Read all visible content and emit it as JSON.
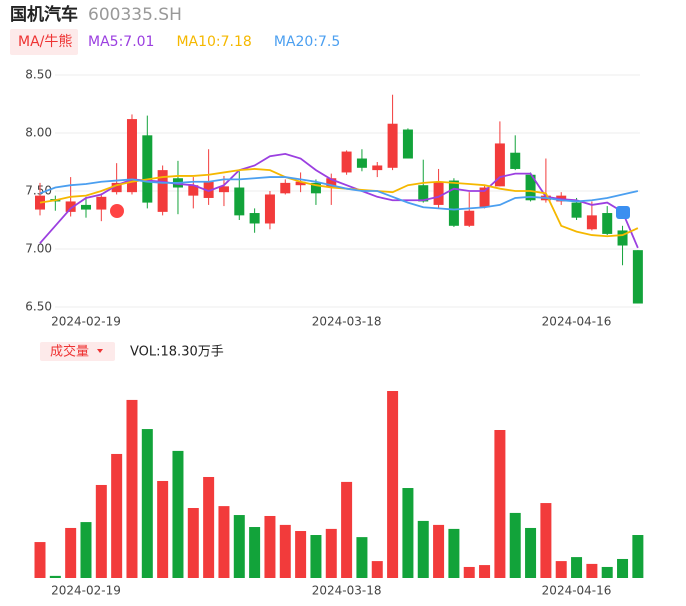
{
  "header": {
    "name": "国机汽车",
    "code": "600335.SH"
  },
  "chart_data": [
    {
      "type": "candlestick",
      "button": "MA/牛熊",
      "categories": [
        null,
        null,
        null,
        "2024-02-19",
        null,
        null,
        null,
        null,
        null,
        null,
        null,
        null,
        null,
        null,
        null,
        null,
        null,
        null,
        null,
        null,
        "2024-03-18",
        null,
        null,
        null,
        null,
        null,
        null,
        null,
        null,
        null,
        null,
        null,
        null,
        null,
        null,
        "2024-04-16",
        null,
        null,
        null,
        null
      ],
      "open": [
        7.34,
        7.43,
        7.32,
        7.38,
        7.34,
        7.49,
        7.49,
        7.98,
        7.32,
        7.61,
        7.46,
        7.44,
        7.49,
        7.53,
        7.31,
        7.22,
        7.48,
        7.55,
        7.57,
        7.53,
        7.66,
        7.78,
        7.68,
        7.7,
        8.03,
        7.55,
        7.38,
        7.59,
        7.2,
        7.36,
        7.54,
        7.83,
        7.64,
        7.42,
        7.41,
        7.4,
        7.17,
        7.31,
        7.16,
        6.99
      ],
      "high": [
        7.57,
        7.46,
        7.62,
        7.45,
        7.48,
        7.74,
        8.16,
        8.15,
        7.72,
        7.76,
        7.62,
        7.86,
        7.63,
        7.67,
        7.35,
        7.5,
        7.6,
        7.66,
        7.6,
        7.65,
        7.85,
        7.86,
        7.75,
        8.33,
        8.04,
        7.77,
        7.69,
        7.61,
        7.49,
        7.55,
        8.1,
        7.98,
        7.66,
        7.78,
        7.49,
        7.44,
        7.41,
        7.37,
        7.2,
        6.99
      ],
      "low": [
        7.29,
        7.33,
        7.28,
        7.27,
        7.24,
        7.47,
        7.47,
        7.35,
        7.29,
        7.3,
        7.35,
        7.38,
        7.37,
        7.25,
        7.14,
        7.17,
        7.47,
        7.49,
        7.38,
        7.38,
        7.64,
        7.67,
        7.62,
        7.68,
        7.78,
        7.4,
        7.35,
        7.19,
        7.19,
        7.35,
        7.54,
        7.68,
        7.41,
        7.4,
        7.38,
        7.25,
        7.16,
        7.12,
        6.86,
        6.53
      ],
      "close": [
        7.46,
        7.41,
        7.41,
        7.34,
        7.45,
        7.57,
        8.12,
        7.4,
        7.68,
        7.53,
        7.55,
        7.58,
        7.54,
        7.29,
        7.22,
        7.47,
        7.57,
        7.58,
        7.48,
        7.61,
        7.84,
        7.7,
        7.72,
        8.08,
        7.78,
        7.41,
        7.58,
        7.2,
        7.33,
        7.53,
        7.91,
        7.69,
        7.42,
        7.46,
        7.46,
        7.27,
        7.29,
        7.13,
        7.03,
        6.53
      ],
      "up_color": "#f23b3b",
      "down_color": "#12a33a",
      "series": [
        {
          "name": "MA5:7.01",
          "color": "#9b3fe0",
          "values": [
            7.05,
            7.2,
            7.35,
            7.44,
            7.47,
            7.55,
            7.6,
            7.59,
            7.58,
            7.56,
            7.55,
            7.5,
            7.55,
            7.68,
            7.72,
            7.8,
            7.82,
            7.78,
            7.68,
            7.6,
            7.55,
            7.5,
            7.45,
            7.42,
            7.42,
            7.42,
            7.45,
            7.52,
            7.5,
            7.5,
            7.62,
            7.65,
            7.65,
            7.45,
            7.43,
            7.42,
            7.38,
            7.4,
            7.32,
            7.01
          ]
        },
        {
          "name": "MA10:7.18",
          "color": "#f5b800",
          "values": [
            7.4,
            7.42,
            7.45,
            7.46,
            7.5,
            7.55,
            7.58,
            7.6,
            7.62,
            7.63,
            7.63,
            7.64,
            7.66,
            7.68,
            7.69,
            7.68,
            7.62,
            7.58,
            7.55,
            7.53,
            7.52,
            7.51,
            7.5,
            7.49,
            7.55,
            7.57,
            7.58,
            7.57,
            7.56,
            7.55,
            7.52,
            7.5,
            7.5,
            7.48,
            7.2,
            7.15,
            7.12,
            7.11,
            7.12,
            7.18
          ]
        },
        {
          "name": "MA20:7.5",
          "color": "#4b9ff0",
          "values": [
            7.48,
            7.53,
            7.55,
            7.56,
            7.58,
            7.59,
            7.6,
            7.58,
            7.57,
            7.57,
            7.58,
            7.58,
            7.6,
            7.6,
            7.61,
            7.62,
            7.62,
            7.6,
            7.58,
            7.55,
            7.52,
            7.5,
            7.5,
            7.45,
            7.4,
            7.36,
            7.35,
            7.34,
            7.35,
            7.36,
            7.38,
            7.44,
            7.45,
            7.44,
            7.42,
            7.41,
            7.42,
            7.44,
            7.47,
            7.5
          ]
        }
      ],
      "ylim": [
        6.5,
        8.5
      ],
      "yticks": [
        {
          "value": 6.5,
          "label": "6.50"
        },
        {
          "value": 7,
          "label": "7.00"
        },
        {
          "value": 7.5,
          "label": "7.50"
        },
        {
          "value": 8,
          "label": "8.00"
        },
        {
          "value": 8.5,
          "label": "8.50"
        }
      ],
      "grid": true
    },
    {
      "type": "bar",
      "button": "成交量",
      "label": "VOL:18.30万手",
      "categories": [
        null,
        null,
        null,
        "2024-02-19",
        null,
        null,
        null,
        null,
        null,
        null,
        null,
        null,
        null,
        null,
        null,
        null,
        null,
        null,
        null,
        null,
        "2024-03-18",
        null,
        null,
        null,
        null,
        null,
        null,
        null,
        null,
        null,
        null,
        null,
        null,
        null,
        null,
        "2024-04-16",
        null,
        null,
        null,
        null
      ],
      "values": [
        15.3,
        0.9,
        21.3,
        23.8,
        39.6,
        52.8,
        75.8,
        63.4,
        41.3,
        54.1,
        29.8,
        43.0,
        30.6,
        26.8,
        21.7,
        26.4,
        22.6,
        20.0,
        18.3,
        20.9,
        40.9,
        17.4,
        7.2,
        79.6,
        38.3,
        24.3,
        22.6,
        20.9,
        4.7,
        5.5,
        63.0,
        27.7,
        21.3,
        31.9,
        7.2,
        8.9,
        6.0,
        4.7,
        8.1,
        18.3
      ]
    }
  ]
}
